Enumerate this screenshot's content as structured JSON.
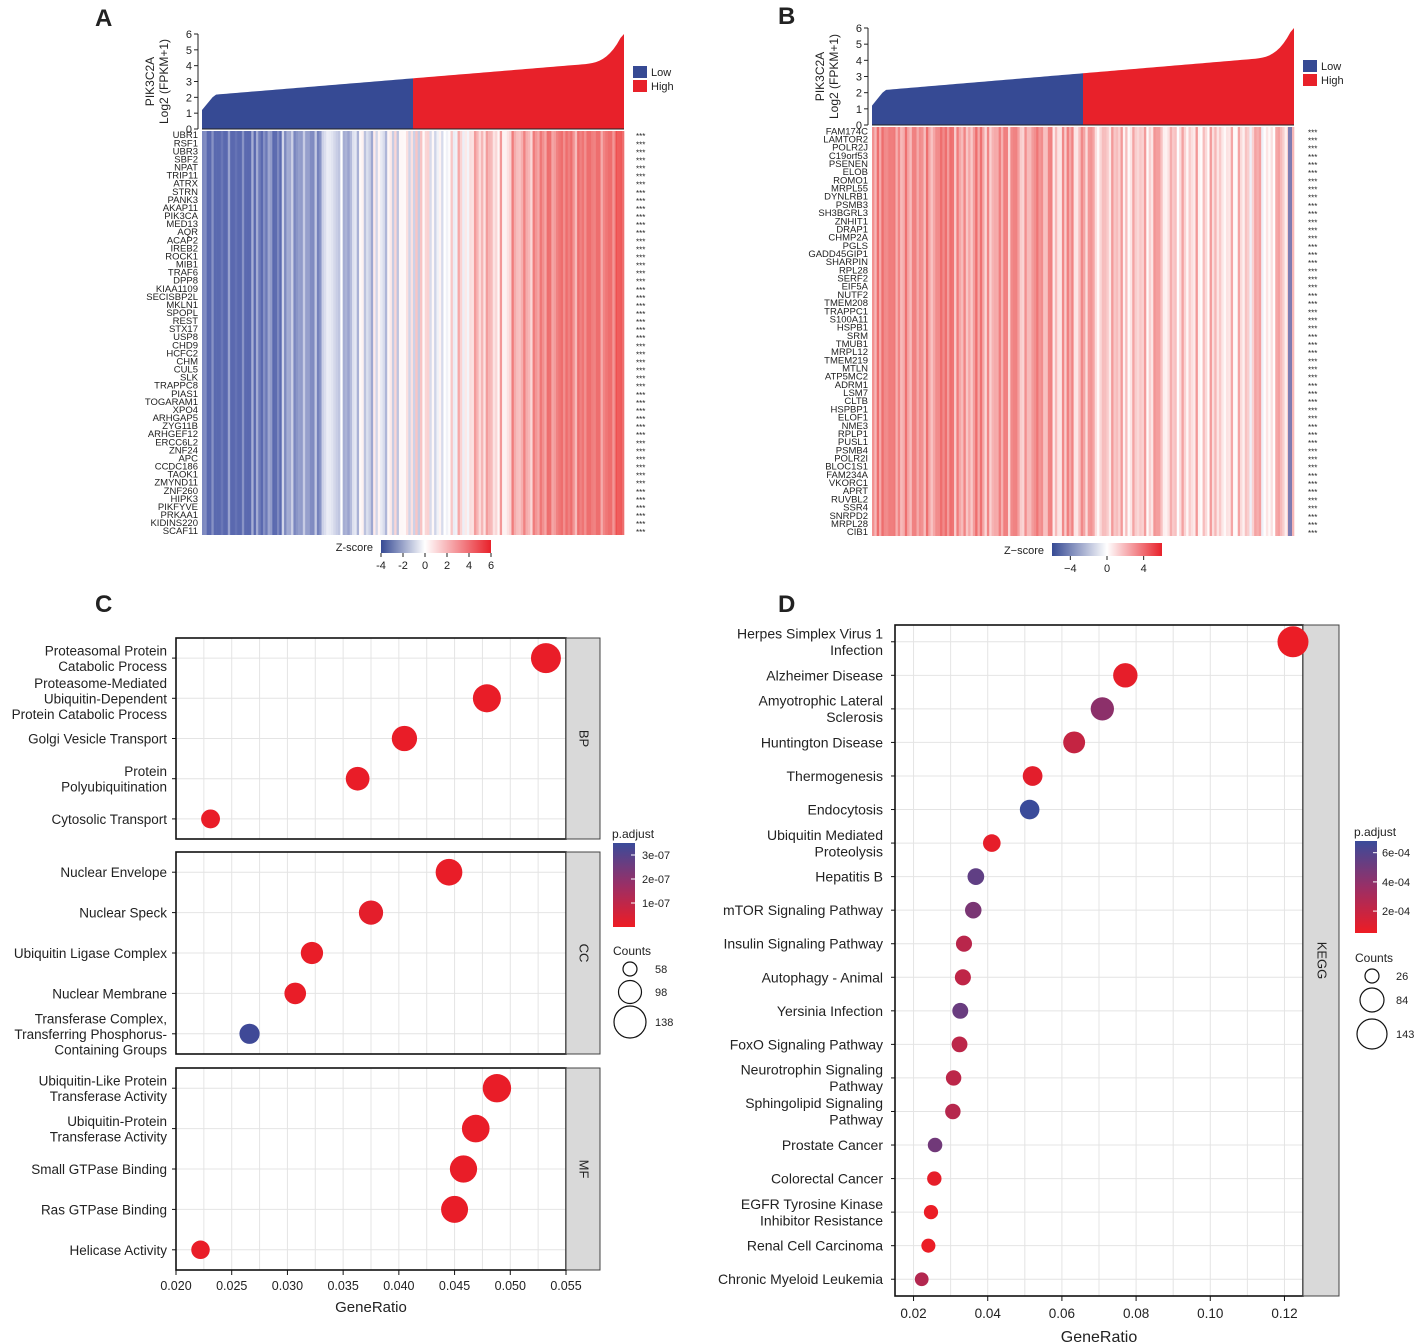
{
  "colors": {
    "low": "#364a94",
    "high": "#e8212a",
    "grid": "#e4e4e4",
    "strip": "#d9d9d9",
    "padj_low": "#ee1c24",
    "padj_high": "#3a4b9a"
  },
  "chart_data": [
    {
      "panel": "A",
      "type": "heatmap",
      "expr_axis_label_gene": "PIK3C2A",
      "expr_axis_label_unit": "Log2 (FPKM+1)",
      "expr_axis_ticks": [
        0,
        1,
        2,
        3,
        4,
        5,
        6
      ],
      "expr_ylim": [
        0,
        6
      ],
      "legend": [
        "Low",
        "High"
      ],
      "zscore_label": "Z-score",
      "zscore_ticks": [
        "-4",
        "-2",
        "0",
        "2",
        "4",
        "6"
      ],
      "zscore_range": [
        -4,
        6
      ],
      "low_fraction": 0.5,
      "significance": "***",
      "genes": [
        "UBR1",
        "RSF1",
        "UBR3",
        "SBF2",
        "NPAT",
        "TRIP11",
        "ATRX",
        "STRN",
        "PANK3",
        "AKAP11",
        "PIK3CA",
        "MED13",
        "AQR",
        "ACAP2",
        "IREB2",
        "ROCK1",
        "MIB1",
        "TRAF6",
        "DPP8",
        "KIAA1109",
        "SECISBP2L",
        "MKLN1",
        "SPOPL",
        "REST",
        "STX17",
        "USP8",
        "CHD9",
        "HCFC2",
        "CHM",
        "CUL5",
        "SLK",
        "TRAPPC8",
        "PIAS1",
        "TOGARAM1",
        "XPO4",
        "ARHGAP5",
        "ZYG11B",
        "ARHGEF12",
        "ERCC6L2",
        "ZNF24",
        "APC",
        "CCDC186",
        "TAOK1",
        "ZMYND11",
        "ZNF260",
        "HIPK3",
        "PIKFYVE",
        "PRKAA1",
        "KIDINS220",
        "SCAF11"
      ]
    },
    {
      "panel": "B",
      "type": "heatmap",
      "expr_axis_label_gene": "PIK3C2A",
      "expr_axis_label_unit": "Log2 (FPKM+1)",
      "expr_axis_ticks": [
        0,
        1,
        2,
        3,
        4,
        5,
        6
      ],
      "expr_ylim": [
        0,
        6
      ],
      "legend": [
        "Low",
        "High"
      ],
      "zscore_label": "Z−score",
      "zscore_ticks": [
        "−4",
        "0",
        "4"
      ],
      "zscore_range": [
        -6,
        6
      ],
      "low_fraction": 0.5,
      "significance": "***",
      "genes": [
        "FAM174C",
        "LAMTOR2",
        "POLR2J",
        "C19orf53",
        "PSENEN",
        "ELOB",
        "ROMO1",
        "MRPL55",
        "DYNLRB1",
        "PSMB3",
        "SH3BGRL3",
        "ZNHIT1",
        "DRAP1",
        "CHMP2A",
        "PGLS",
        "GADD45GIP1",
        "SHARPIN",
        "RPL28",
        "SERF2",
        "EIF5A",
        "NUTF2",
        "TMEM208",
        "TRAPPC1",
        "S100A11",
        "HSPB1",
        "SRM",
        "TMUB1",
        "MRPL12",
        "TMEM219",
        "MTLN",
        "ATP5MC2",
        "ADRM1",
        "LSM7",
        "CLTB",
        "HSPBP1",
        "ELOF1",
        "NME3",
        "RPLP1",
        "PUSL1",
        "PSMB4",
        "POLR2I",
        "BLOC1S1",
        "FAM234A",
        "VKORC1",
        "APRT",
        "RUVBL2",
        "SSR4",
        "SNRPD2",
        "MRPL28",
        "CIB1"
      ]
    },
    {
      "panel": "C",
      "type": "scatter",
      "xlabel": "GeneRatio",
      "xlim": [
        0.02,
        0.055
      ],
      "xticks": [
        "0.020",
        "0.025",
        "0.030",
        "0.035",
        "0.040",
        "0.045",
        "0.050",
        "0.055"
      ],
      "colorbar_title": "p.adjust",
      "colorbar_ticks": [
        "3e-07",
        "2e-07",
        "1e-07"
      ],
      "colorbar_range": [
        0,
        3.5e-07
      ],
      "size_title": "Counts",
      "size_legend": [
        58,
        98,
        138
      ],
      "facets": [
        {
          "label": "BP",
          "terms": [
            {
              "lines": [
                "Proteasomal Protein",
                "Catabolic Process"
              ],
              "x": 0.0532,
              "count": 150,
              "padj": 1e-08
            },
            {
              "lines": [
                "Proteasome-Mediated",
                "Ubiquitin-Dependent",
                "Protein Catabolic Process"
              ],
              "x": 0.0479,
              "count": 135,
              "padj": 1e-08
            },
            {
              "lines": [
                "Golgi Vesicle Transport"
              ],
              "x": 0.0405,
              "count": 114,
              "padj": 1e-08
            },
            {
              "lines": [
                "Protein",
                "Polyubiquitination"
              ],
              "x": 0.0363,
              "count": 102,
              "padj": 1e-08
            },
            {
              "lines": [
                "Cytosolic Transport"
              ],
              "x": 0.0231,
              "count": 65,
              "padj": 1e-08
            }
          ]
        },
        {
          "label": "CC",
          "terms": [
            {
              "lines": [
                "Nuclear Envelope"
              ],
              "x": 0.0445,
              "count": 125,
              "padj": 1e-08
            },
            {
              "lines": [
                "Nuclear Speck"
              ],
              "x": 0.0375,
              "count": 106,
              "padj": 2e-08
            },
            {
              "lines": [
                "Ubiquitin Ligase Complex"
              ],
              "x": 0.0322,
              "count": 91,
              "padj": 1e-08
            },
            {
              "lines": [
                "Nuclear Membrane"
              ],
              "x": 0.0307,
              "count": 86,
              "padj": 1e-08
            },
            {
              "lines": [
                "Transferase Complex,",
                "Transferring Phosphorus-",
                "Containing Groups"
              ],
              "x": 0.0266,
              "count": 75,
              "padj": 3.4e-07
            }
          ]
        },
        {
          "label": "MF",
          "terms": [
            {
              "lines": [
                "Ubiquitin-Like Protein",
                "Transferase Activity"
              ],
              "x": 0.0488,
              "count": 138,
              "padj": 1e-08
            },
            {
              "lines": [
                "Ubiquitin-Protein",
                "Transferase Activity"
              ],
              "x": 0.0469,
              "count": 132,
              "padj": 1e-08
            },
            {
              "lines": [
                "Small GTPase Binding"
              ],
              "x": 0.0458,
              "count": 129,
              "padj": 1e-08
            },
            {
              "lines": [
                "Ras GTPase Binding"
              ],
              "x": 0.045,
              "count": 127,
              "padj": 1e-08
            },
            {
              "lines": [
                "Helicase Activity"
              ],
              "x": 0.0222,
              "count": 62,
              "padj": 1e-08
            }
          ]
        }
      ]
    },
    {
      "panel": "D",
      "type": "scatter",
      "xlabel": "GeneRatio",
      "xlim": [
        0.015,
        0.125
      ],
      "xticks": [
        "0.02",
        "0.04",
        "0.06",
        "0.08",
        "0.10",
        "0.12"
      ],
      "colorbar_title": "p.adjust",
      "colorbar_ticks": [
        "6e-04",
        "4e-04",
        "2e-04"
      ],
      "colorbar_range": [
        5e-05,
        0.00068
      ],
      "size_title": "Counts",
      "size_legend": [
        26,
        84,
        143
      ],
      "facet_label": "KEGG",
      "terms": [
        {
          "lines": [
            "Herpes Simplex Virus 1",
            "Infection"
          ],
          "x": 0.1223,
          "count": 143,
          "padj": 6e-05
        },
        {
          "lines": [
            "Alzheimer Disease"
          ],
          "x": 0.0771,
          "count": 100,
          "padj": 8e-05
        },
        {
          "lines": [
            "Amyotrophic Lateral",
            "Sclerosis"
          ],
          "x": 0.0709,
          "count": 93,
          "padj": 0.0004
        },
        {
          "lines": [
            "Huntington Disease"
          ],
          "x": 0.0633,
          "count": 84,
          "padj": 0.0002
        },
        {
          "lines": [
            "Thermogenesis"
          ],
          "x": 0.0521,
          "count": 70,
          "padj": 9e-05
        },
        {
          "lines": [
            "Endocytosis"
          ],
          "x": 0.0513,
          "count": 69,
          "padj": 0.00068
        },
        {
          "lines": [
            "Ubiquitin Mediated",
            "Proteolysis"
          ],
          "x": 0.0411,
          "count": 56,
          "padj": 8e-05
        },
        {
          "lines": [
            "Hepatitis B"
          ],
          "x": 0.0368,
          "count": 50,
          "padj": 0.00055
        },
        {
          "lines": [
            "mTOR Signaling Pathway"
          ],
          "x": 0.0361,
          "count": 49,
          "padj": 0.00046
        },
        {
          "lines": [
            "Insulin Signaling Pathway"
          ],
          "x": 0.0336,
          "count": 46,
          "padj": 0.00024
        },
        {
          "lines": [
            "Autophagy - Animal"
          ],
          "x": 0.0333,
          "count": 46,
          "padj": 0.00022
        },
        {
          "lines": [
            "Yersinia Infection"
          ],
          "x": 0.0326,
          "count": 45,
          "padj": 0.00052
        },
        {
          "lines": [
            "FoxO Signaling Pathway"
          ],
          "x": 0.0324,
          "count": 44,
          "padj": 0.00023
        },
        {
          "lines": [
            "Neurotrophin Signaling",
            "Pathway"
          ],
          "x": 0.0308,
          "count": 42,
          "padj": 0.00023
        },
        {
          "lines": [
            "Sphingolipid Signaling",
            "Pathway"
          ],
          "x": 0.0306,
          "count": 42,
          "padj": 0.00025
        },
        {
          "lines": [
            "Prostate Cancer"
          ],
          "x": 0.0258,
          "count": 36,
          "padj": 0.00049
        },
        {
          "lines": [
            "Colorectal Cancer"
          ],
          "x": 0.0256,
          "count": 35,
          "padj": 8e-05
        },
        {
          "lines": [
            "EGFR Tyrosine Kinase",
            "Inhibitor Resistance"
          ],
          "x": 0.0247,
          "count": 34,
          "padj": 6e-05
        },
        {
          "lines": [
            "Renal Cell Carcinoma"
          ],
          "x": 0.024,
          "count": 33,
          "padj": 6e-05
        },
        {
          "lines": [
            "Chronic Myeloid Leukemia"
          ],
          "x": 0.0222,
          "count": 31,
          "padj": 0.00026
        }
      ]
    }
  ],
  "panel_letters": [
    "A",
    "B",
    "C",
    "D"
  ]
}
